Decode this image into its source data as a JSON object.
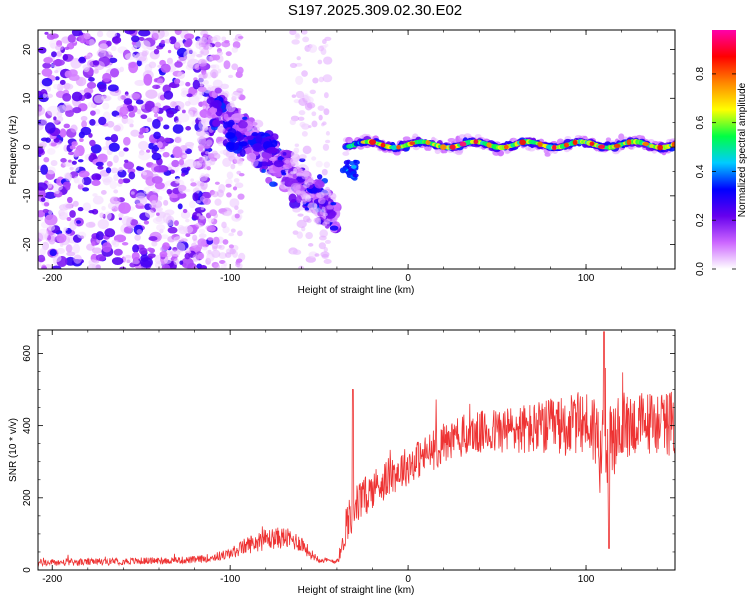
{
  "title": "S197.2025.309.02.30.E02",
  "colors": {
    "snr_line": "#ee3333",
    "axis": "#000000"
  },
  "chart_data": [
    {
      "type": "heatmap",
      "title": "S197.2025.309.02.30.E02",
      "xlabel": "Height of straight line (km)",
      "ylabel": "Frequency (Hz)",
      "xlim": [
        -208,
        150
      ],
      "ylim": [
        -25,
        24
      ],
      "x_ticks": [
        -200,
        -100,
        0,
        100
      ],
      "x_tick_labels": [
        "-200",
        "-100",
        "0",
        "100"
      ],
      "y_ticks": [
        -20,
        -10,
        0,
        10,
        20
      ],
      "y_tick_labels": [
        "-20",
        "-10",
        "0",
        "10",
        "20"
      ],
      "colorbar": {
        "label": "Normalized spectral amplitude",
        "range": [
          0,
          0.98
        ],
        "ticks": [
          0.0,
          0.2,
          0.4,
          0.6,
          0.8
        ],
        "tick_labels": [
          "0.0",
          "0.2",
          "0.4",
          "0.6",
          "0.8"
        ],
        "colors": [
          "#ffffff",
          "#cc66ff",
          "#6600ee",
          "#0000ff",
          "#00ccff",
          "#00ff44",
          "#ffff00",
          "#ff8800",
          "#ff0000",
          "#ff00aa"
        ]
      },
      "regions": [
        {
          "name": "noise",
          "x_range": [
            -208,
            -110
          ],
          "f_range": [
            -25,
            24
          ],
          "amplitude": 0.1
        },
        {
          "name": "scattered",
          "x_range": [
            -110,
            -40
          ],
          "f_range": [
            -25,
            12
          ],
          "amplitude": 0.15
        },
        {
          "name": "tone",
          "x_range": [
            -35,
            150
          ],
          "frequency_hz": 0.5,
          "amplitude": 0.75
        }
      ]
    },
    {
      "type": "line",
      "xlabel": "Height of straight line (km)",
      "ylabel": "SNR (10 * v/v)",
      "xlim": [
        -208,
        150
      ],
      "ylim": [
        0,
        665
      ],
      "x_ticks": [
        -200,
        -100,
        0,
        100
      ],
      "x_tick_labels": [
        "-200",
        "-100",
        "0",
        "100"
      ],
      "y_ticks": [
        0,
        200,
        400,
        600
      ],
      "y_tick_labels": [
        "0",
        "200",
        "400",
        "600"
      ],
      "series": [
        {
          "name": "SNR",
          "x": [
            -208,
            -180,
            -150,
            -120,
            -110,
            -100,
            -90,
            -80,
            -70,
            -60,
            -55,
            -50,
            -45,
            -40,
            -37,
            -35,
            -33,
            -30,
            -25,
            -20,
            -10,
            0,
            10,
            20,
            30,
            40,
            50,
            60,
            70,
            80,
            90,
            100,
            105,
            110,
            115,
            120,
            130,
            140,
            150
          ],
          "y": [
            20,
            22,
            25,
            28,
            35,
            45,
            70,
            85,
            90,
            75,
            45,
            30,
            25,
            25,
            60,
            130,
            150,
            175,
            200,
            225,
            260,
            290,
            320,
            350,
            370,
            380,
            385,
            390,
            390,
            395,
            400,
            410,
            390,
            300,
            350,
            400,
            405,
            410,
            405
          ],
          "noise_amplitude": [
            10,
            10,
            10,
            10,
            12,
            15,
            25,
            30,
            30,
            25,
            15,
            10,
            8,
            8,
            30,
            60,
            60,
            60,
            55,
            55,
            55,
            55,
            55,
            60,
            60,
            60,
            65,
            70,
            75,
            80,
            85,
            90,
            110,
            140,
            110,
            95,
            90,
            90,
            90
          ]
        }
      ]
    }
  ]
}
